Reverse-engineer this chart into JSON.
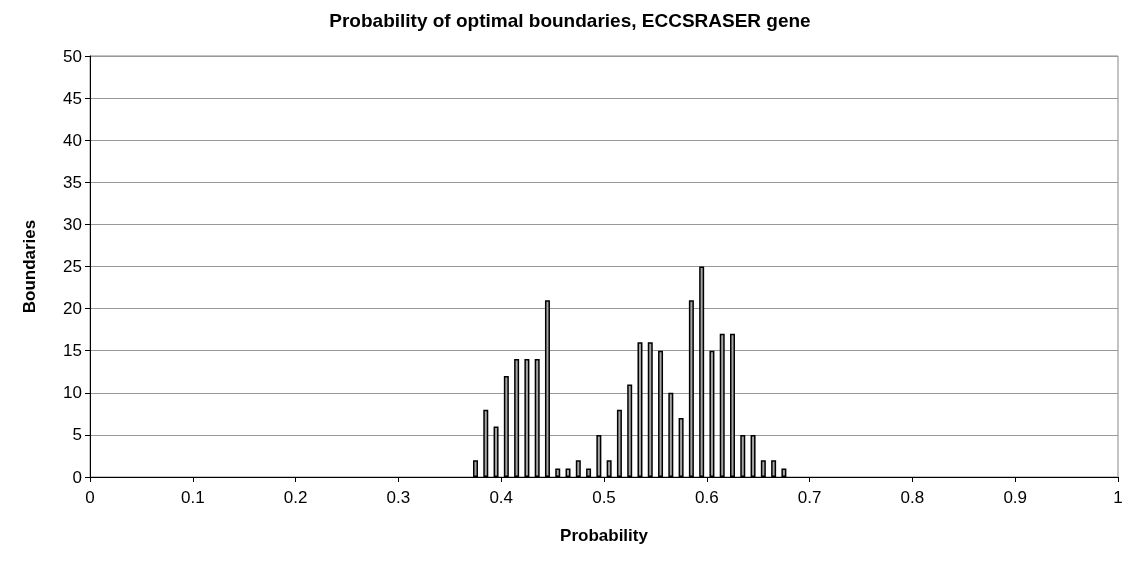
{
  "chart_data": {
    "type": "histogram",
    "title": "Probability of optimal boundaries, ECCSRASER gene",
    "xlabel": "Probability",
    "ylabel": "Boundaries",
    "bins": [
      0.37,
      0.38,
      0.39,
      0.4,
      0.41,
      0.42,
      0.43,
      0.44,
      0.45,
      0.46,
      0.47,
      0.48,
      0.49,
      0.5,
      0.51,
      0.52,
      0.53,
      0.54,
      0.55,
      0.56,
      0.57,
      0.58,
      0.59,
      0.6,
      0.61,
      0.62,
      0.63,
      0.64,
      0.65,
      0.66,
      0.67,
      0.68
    ],
    "values": [
      2,
      8,
      6,
      12,
      14,
      14,
      14,
      21,
      1,
      1,
      2,
      1,
      5,
      2,
      8,
      11,
      16,
      16,
      15,
      10,
      7,
      21,
      25,
      15,
      17,
      17,
      5,
      5,
      2,
      2,
      1
    ],
    "color": "#a6a6a6",
    "xlim": [
      0,
      1
    ],
    "xticks": [
      0,
      0.1,
      0.2,
      0.3,
      0.4,
      0.5,
      0.6,
      0.7,
      0.8,
      0.9,
      1
    ],
    "ylim": [
      0,
      50
    ],
    "yticks": [
      0,
      5,
      10,
      15,
      20,
      25,
      30,
      35,
      40,
      45,
      50
    ],
    "grid": "y"
  }
}
